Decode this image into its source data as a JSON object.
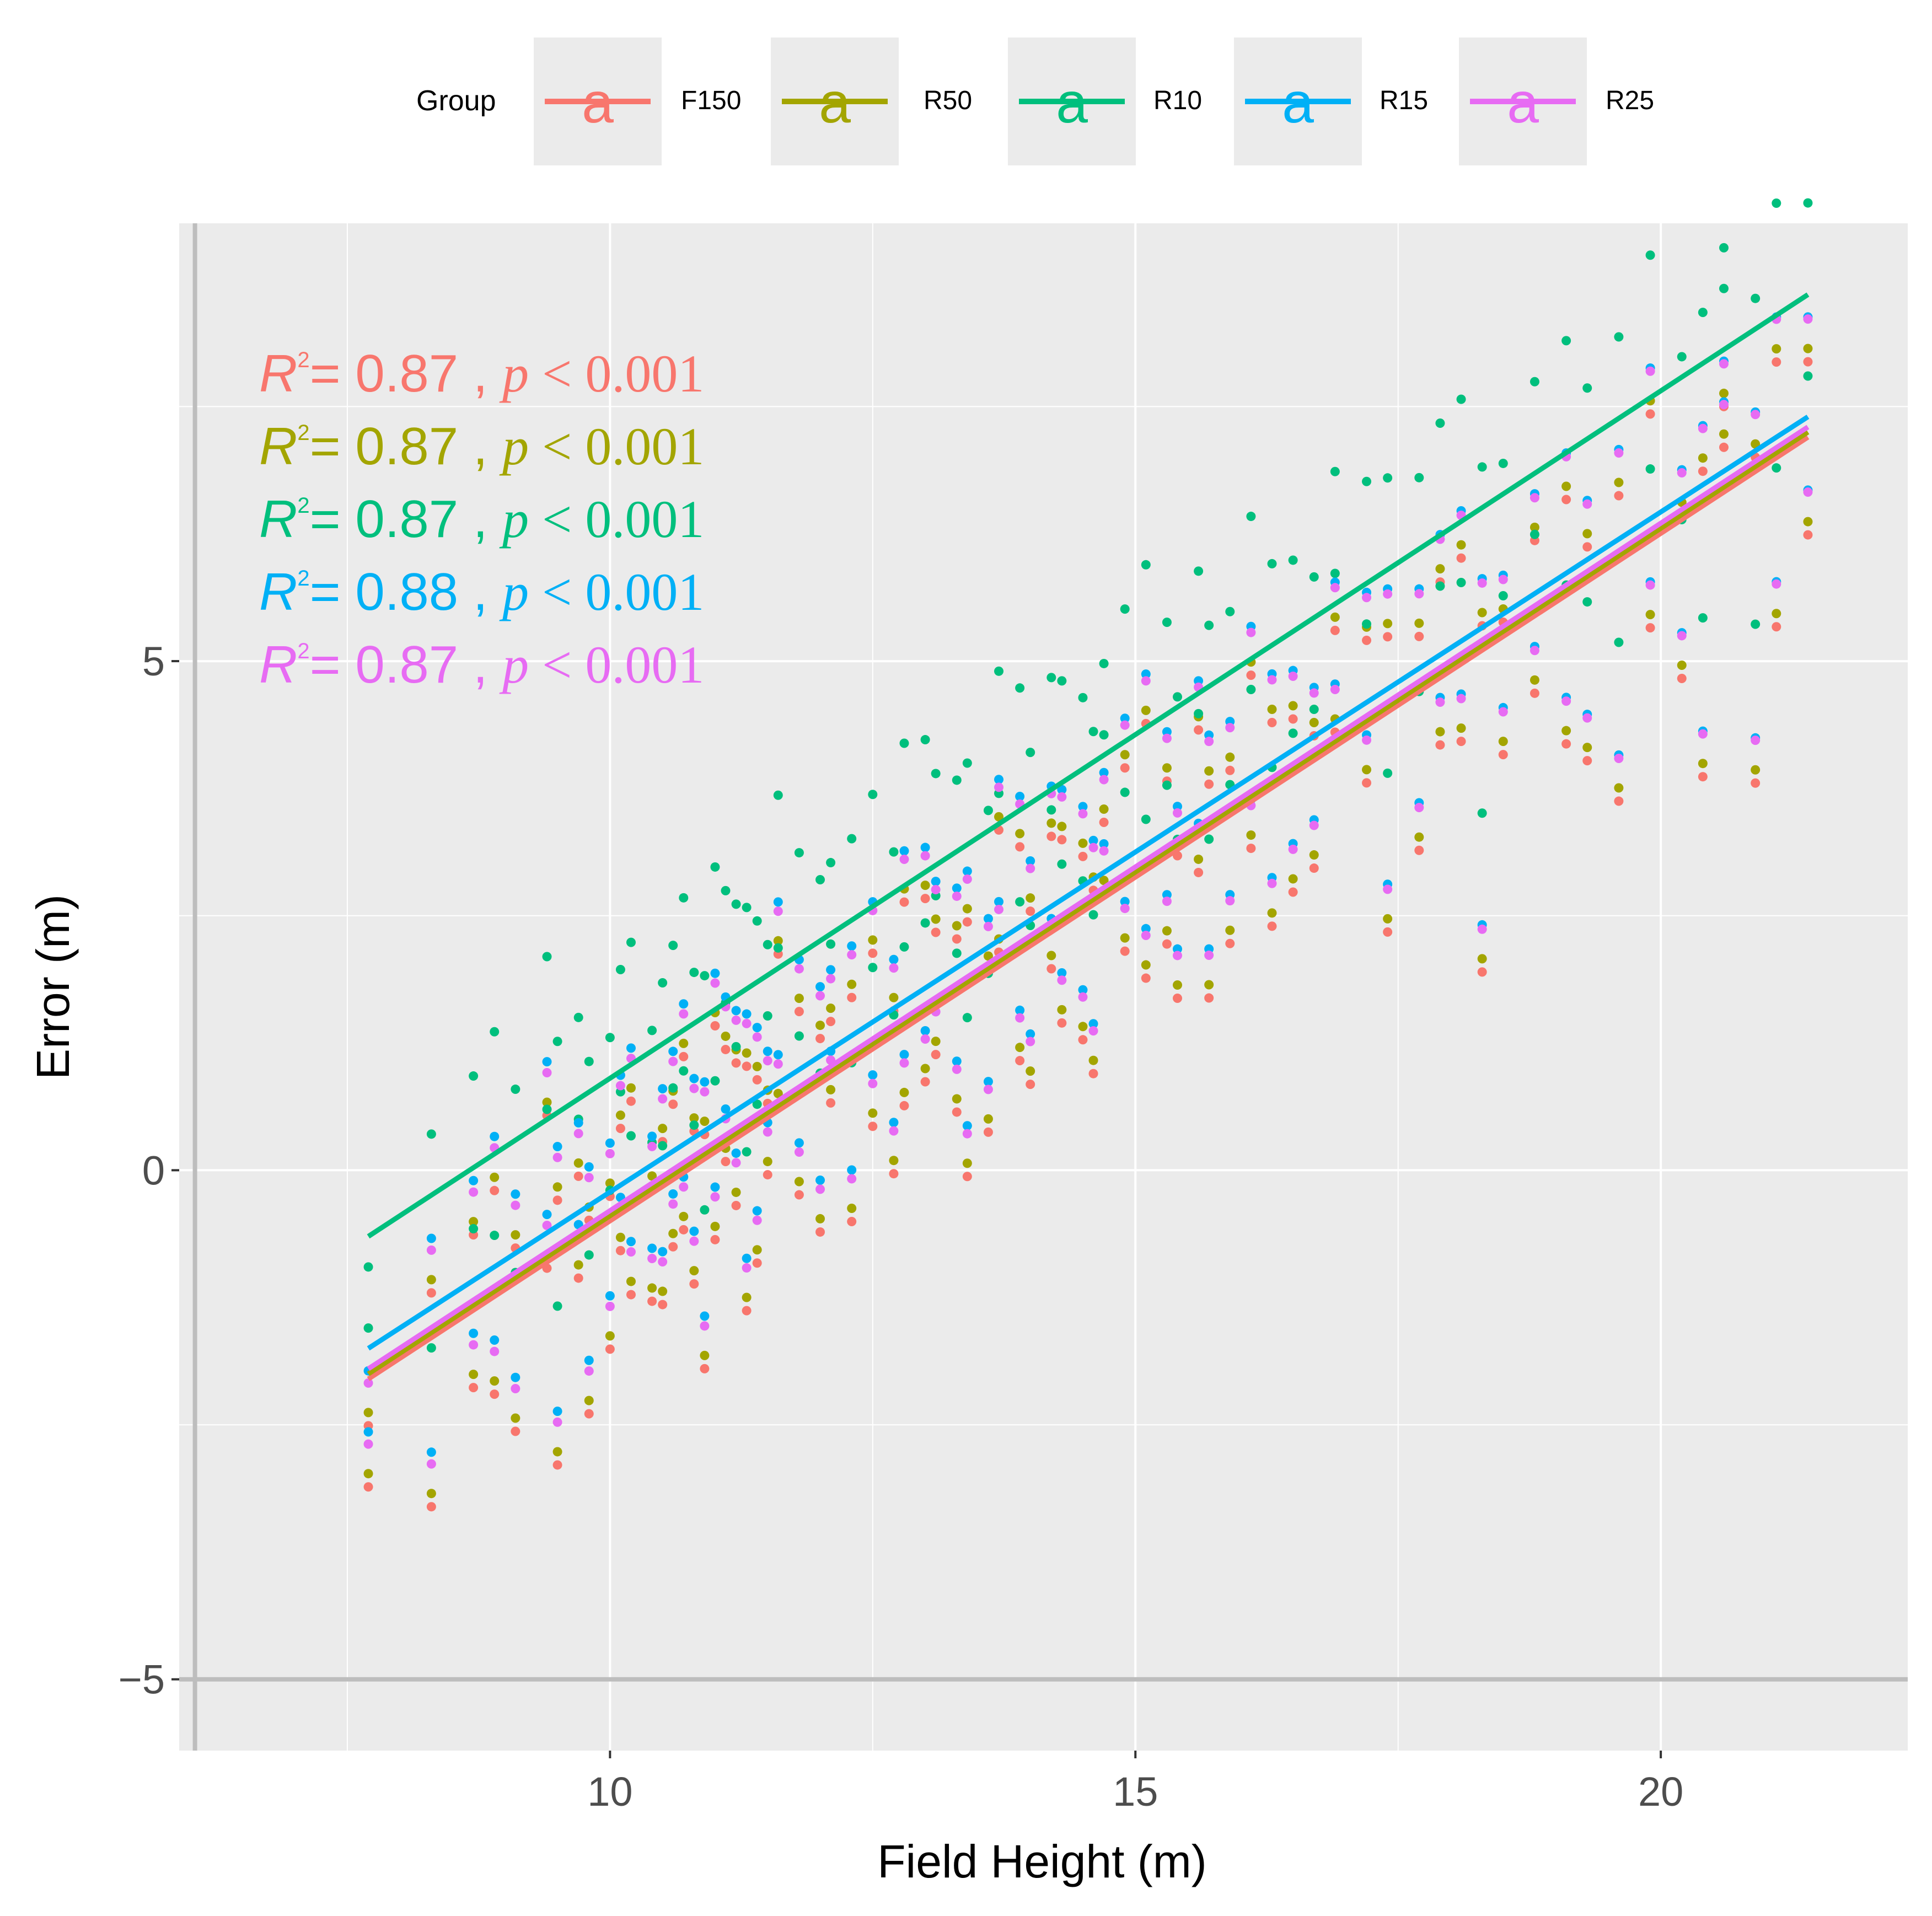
{
  "chart_data": {
    "type": "scatter",
    "title": "",
    "xlabel": "Field Height (m)",
    "ylabel": "Error (m)",
    "xlim": [
      5.9,
      22.35
    ],
    "ylim": [
      -5.7,
      9.3
    ],
    "xticks": [
      10,
      15,
      20
    ],
    "yticks": [
      -5,
      0,
      5
    ],
    "xtick_labels": [
      "10",
      "15",
      "20"
    ],
    "ytick_labels": [
      "−5",
      "0",
      "5"
    ],
    "grid": true,
    "legend": {
      "position": "top",
      "title": "Group",
      "key_glyph": "a"
    },
    "series": [
      {
        "name": "F150",
        "color": "#F8766D",
        "r2": "0.87",
        "p": "0.001",
        "fit": {
          "x": [
            7.7,
            21.4
          ],
          "y": [
            -2.05,
            7.2
          ]
        }
      },
      {
        "name": "R50",
        "color": "#A3A500",
        "r2": "0.87",
        "p": "0.001",
        "fit": {
          "x": [
            7.7,
            21.4
          ],
          "y": [
            -2.0,
            7.25
          ]
        }
      },
      {
        "name": "R10",
        "color": "#00BF7D",
        "r2": "0.87",
        "p": "0.001",
        "fit": {
          "x": [
            7.7,
            21.4
          ],
          "y": [
            -0.65,
            8.6
          ]
        }
      },
      {
        "name": "R15",
        "color": "#00B0F6",
        "r2": "0.88",
        "p": "0.001",
        "fit": {
          "x": [
            7.7,
            21.4
          ],
          "y": [
            -1.75,
            7.4
          ]
        }
      },
      {
        "name": "R25",
        "color": "#E76BF3",
        "r2": "0.87",
        "p": "0.001",
        "fit": {
          "x": [
            7.7,
            21.4
          ],
          "y": [
            -1.95,
            7.3
          ]
        }
      }
    ],
    "annotation": {
      "r_label": "R",
      "sup": "2",
      "eq": "= ",
      "sep": " , ",
      "p_label": "p",
      "lt": " < "
    },
    "points": {
      "x": [
        7.7,
        8.3,
        8.7,
        8.9,
        9.1,
        9.4,
        9.5,
        9.7,
        9.8,
        10.0,
        10.1,
        10.2,
        10.4,
        10.5,
        10.6,
        10.7,
        10.8,
        10.9,
        11.0,
        11.1,
        11.2,
        11.3,
        11.4,
        11.5,
        11.6,
        11.8,
        12.0,
        12.1,
        12.3,
        12.5,
        12.7,
        12.8,
        13.0,
        13.1,
        13.3,
        13.4,
        13.6,
        13.7,
        13.9,
        14.0,
        14.2,
        14.3,
        14.5,
        14.6,
        14.7,
        14.9,
        15.1,
        15.3,
        15.4,
        15.6,
        15.7,
        15.9,
        16.1,
        16.3,
        16.5,
        16.7,
        16.9,
        17.2,
        17.4,
        17.7,
        17.9,
        18.1,
        18.3,
        18.5,
        18.8,
        19.1,
        19.3,
        19.6,
        19.9,
        20.2,
        20.4,
        20.6,
        20.9,
        21.1,
        21.4
      ],
      "offsets": [
        -0.9,
        0.6,
        -0.6,
        1.2,
        -1.3,
        0.1,
        0.7,
        -0.2,
        -1.6,
        0.4,
        1.0,
        -0.7,
        0.2,
        -1.0,
        0.9,
        -0.4,
        0.5,
        -1.9,
        1.4,
        0.0,
        -0.5,
        0.8,
        -1.2,
        0.3,
        1.7,
        -0.8,
        0.6,
        -0.1,
        -1.4,
        1.1,
        0.4,
        -0.6,
        1.3,
        -0.3,
        0.7,
        -1.7,
        0.2,
        1.5,
        -0.9,
        0.5,
        -0.2,
        1.0,
        -1.1,
        0.3,
        0.9,
        -0.5,
        1.6,
        -0.7,
        0.1,
        1.2,
        -1.5,
        0.6,
        -0.3,
        0.8,
        -1.0,
        0.4,
        1.3,
        -0.4,
        -2.0,
        0.7,
        1.1,
        -0.6,
        -3.0,
        0.3,
        0.9,
        -1.3,
        0.5,
        -2.2,
        1.4,
        0.2,
        -2.5,
        0.6,
        -2.9,
        1.1,
        -0.8
      ],
      "second_offsets": [
        -0.3,
        -1.5,
        0.9,
        -0.8,
        0.5,
        1.6,
        -1.9,
        0.8,
        0.3,
        -1.1,
        -0.2,
        1.2,
        -0.9,
        0.6,
        -0.5,
        1.3,
        -1.0,
        0.4,
        -0.7,
        1.1,
        0.9,
        -1.6,
        0.6,
        -0.4,
        0.2,
        1.0,
        -1.3,
        0.7,
        0.8,
        -0.6,
        -1.2,
        1.4,
        -0.5,
        0.9,
        -1.0,
        0.8,
        -1.4,
        0.3,
        1.2,
        -1.2,
        1.1,
        -0.8,
        0.7,
        -1.5,
        0.2,
        1.3,
        -0.9,
        0.9,
        -1.3,
        -0.2,
        0.6,
        -1.1,
        1.4,
        -1.2,
        0.7,
        -0.9,
        0.3,
        1.0,
        0.9,
        -1.4,
        -0.5,
        1.2,
        0.4,
        -1.0,
        -0.6,
        1.1,
        -1.6,
        0.8,
        -0.7,
        -1.4,
        0.5,
        1.0,
        0.3,
        -1.5,
        0.9
      ]
    }
  }
}
